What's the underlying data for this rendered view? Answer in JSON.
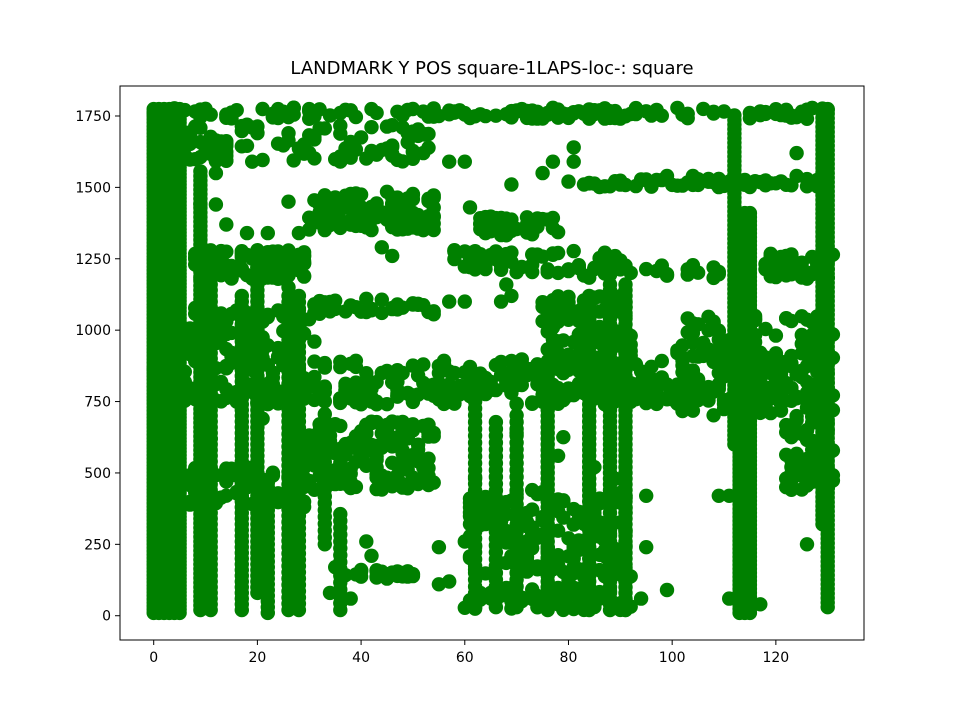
{
  "chart_data": {
    "type": "scatter",
    "title": "LANDMARK Y POS square-1LAPS-loc-: square",
    "xlabel": "",
    "ylabel": "",
    "xlim": [
      -6.5,
      137
    ],
    "ylim": [
      -85,
      1855
    ],
    "x_ticks": [
      "0",
      "20",
      "40",
      "60",
      "80",
      "100",
      "120"
    ],
    "y_ticks": [
      "0",
      "250",
      "500",
      "750",
      "1000",
      "1250",
      "1500",
      "1750"
    ],
    "grid": false,
    "legend": "none",
    "marker_color": "#008000",
    "series": [
      {
        "segments": [
          [
            0,
            10,
            1780,
            12
          ],
          [
            1,
            10,
            1780,
            12
          ],
          [
            2,
            10,
            1780,
            12
          ],
          [
            3,
            10,
            1780,
            12
          ],
          [
            4,
            10,
            1780,
            12
          ],
          [
            5,
            10,
            1780,
            12
          ],
          [
            130,
            30,
            1780,
            16
          ],
          [
            129,
            320,
            1780,
            16
          ],
          [
            113,
            10,
            1250,
            14
          ],
          [
            114,
            10,
            1420,
            14
          ],
          [
            115,
            10,
            1420,
            14
          ],
          [
            112,
            600,
            1760,
            16
          ],
          [
            9,
            20,
            1560,
            16
          ],
          [
            11,
            20,
            1200,
            20
          ],
          [
            17,
            20,
            1130,
            20
          ],
          [
            20,
            80,
            1280,
            20
          ],
          [
            22,
            10,
            480,
            20
          ],
          [
            26,
            20,
            1120,
            22
          ],
          [
            28,
            20,
            1120,
            22
          ],
          [
            33,
            250,
            720,
            24
          ],
          [
            36,
            20,
            360,
            24
          ],
          [
            76,
            20,
            860,
            20
          ],
          [
            84,
            20,
            1120,
            20
          ],
          [
            88,
            20,
            1160,
            20
          ],
          [
            91,
            20,
            1160,
            20
          ],
          [
            62,
            30,
            780,
            24
          ],
          [
            66,
            30,
            700,
            24
          ],
          [
            70,
            30,
            720,
            24
          ]
        ],
        "bands": [
          [
            0,
            131,
            740,
            820,
            300
          ],
          [
            0,
            131,
            830,
            900,
            120
          ],
          [
            0,
            131,
            1740,
            1780,
            140
          ],
          [
            5,
            54,
            1590,
            1720,
            100
          ],
          [
            30,
            54,
            1350,
            1490,
            120
          ],
          [
            7,
            30,
            1180,
            1280,
            80
          ],
          [
            7,
            30,
            900,
            1080,
            80
          ],
          [
            30,
            54,
            1050,
            1110,
            40
          ],
          [
            30,
            54,
            440,
            680,
            160
          ],
          [
            5,
            30,
            380,
            520,
            60
          ],
          [
            36,
            50,
            130,
            160,
            25
          ],
          [
            60,
            92,
            120,
            440,
            150
          ],
          [
            60,
            92,
            20,
            100,
            60
          ],
          [
            75,
            92,
            860,
            1120,
            120
          ],
          [
            56,
            92,
            1200,
            1280,
            50
          ],
          [
            62,
            78,
            1330,
            1400,
            40
          ],
          [
            80,
            131,
            1500,
            1530,
            60
          ],
          [
            100,
            131,
            700,
            1050,
            140
          ],
          [
            118,
            131,
            1180,
            1270,
            60
          ],
          [
            122,
            131,
            440,
            700,
            60
          ],
          [
            60,
            80,
            840,
            870,
            20
          ],
          [
            80,
            110,
            1180,
            1230,
            30
          ],
          [
            68,
            92,
            1740,
            1770,
            40
          ]
        ],
        "points": [
          [
            2,
            1100
          ],
          [
            14,
            1370
          ],
          [
            18,
            1340
          ],
          [
            22,
            1340
          ],
          [
            28,
            1340
          ],
          [
            44,
            1290
          ],
          [
            46,
            1260
          ],
          [
            50,
            1090
          ],
          [
            47,
            1090
          ],
          [
            37,
            790
          ],
          [
            39,
            790
          ],
          [
            44,
            850
          ],
          [
            48,
            850
          ],
          [
            55,
            850
          ],
          [
            58,
            850
          ],
          [
            52,
            1350
          ],
          [
            53,
            1460
          ],
          [
            57,
            1590
          ],
          [
            60,
            1590
          ],
          [
            61,
            1430
          ],
          [
            58,
            1280
          ],
          [
            57,
            1100
          ],
          [
            60,
            1100
          ],
          [
            67,
            1100
          ],
          [
            68,
            1160
          ],
          [
            69,
            1120
          ],
          [
            66,
            790
          ],
          [
            70,
            640
          ],
          [
            79,
            625
          ],
          [
            78,
            560
          ],
          [
            85,
            520
          ],
          [
            88,
            640
          ],
          [
            89,
            480
          ],
          [
            95,
            420
          ],
          [
            95,
            240
          ],
          [
            69,
            1510
          ],
          [
            75,
            1550
          ],
          [
            77,
            1590
          ],
          [
            81,
            1640
          ],
          [
            81,
            1590
          ],
          [
            99,
            1540
          ],
          [
            104,
            1540
          ],
          [
            101,
            920
          ],
          [
            104,
            910
          ],
          [
            106,
            910
          ],
          [
            108,
            925
          ],
          [
            110,
            910
          ],
          [
            120,
            910
          ],
          [
            126,
            650
          ],
          [
            129,
            660
          ],
          [
            126,
            250
          ],
          [
            117,
            40
          ],
          [
            111,
            60
          ],
          [
            111,
            420
          ],
          [
            109,
            420
          ],
          [
            26,
            1450
          ],
          [
            19,
            1590
          ],
          [
            12,
            1550
          ],
          [
            12,
            1440
          ],
          [
            9,
            1440
          ],
          [
            10,
            640
          ],
          [
            11,
            620
          ],
          [
            14,
            470
          ],
          [
            17,
            490
          ],
          [
            22,
            770
          ],
          [
            21,
            690
          ],
          [
            24,
            1180
          ],
          [
            26,
            1150
          ],
          [
            31,
            960
          ],
          [
            31,
            890
          ],
          [
            41,
            260
          ],
          [
            42,
            210
          ],
          [
            44,
            140
          ],
          [
            35,
            170
          ],
          [
            34,
            80
          ],
          [
            38,
            60
          ],
          [
            40,
            160
          ],
          [
            46,
            150
          ],
          [
            48,
            150
          ],
          [
            55,
            110
          ],
          [
            57,
            120
          ],
          [
            55,
            240
          ],
          [
            62,
            480
          ],
          [
            64,
            360
          ],
          [
            73,
            440
          ],
          [
            94,
            60
          ],
          [
            99,
            90
          ],
          [
            126,
            1740
          ],
          [
            124,
            1620
          ],
          [
            124,
            1540
          ]
        ]
      }
    ]
  }
}
